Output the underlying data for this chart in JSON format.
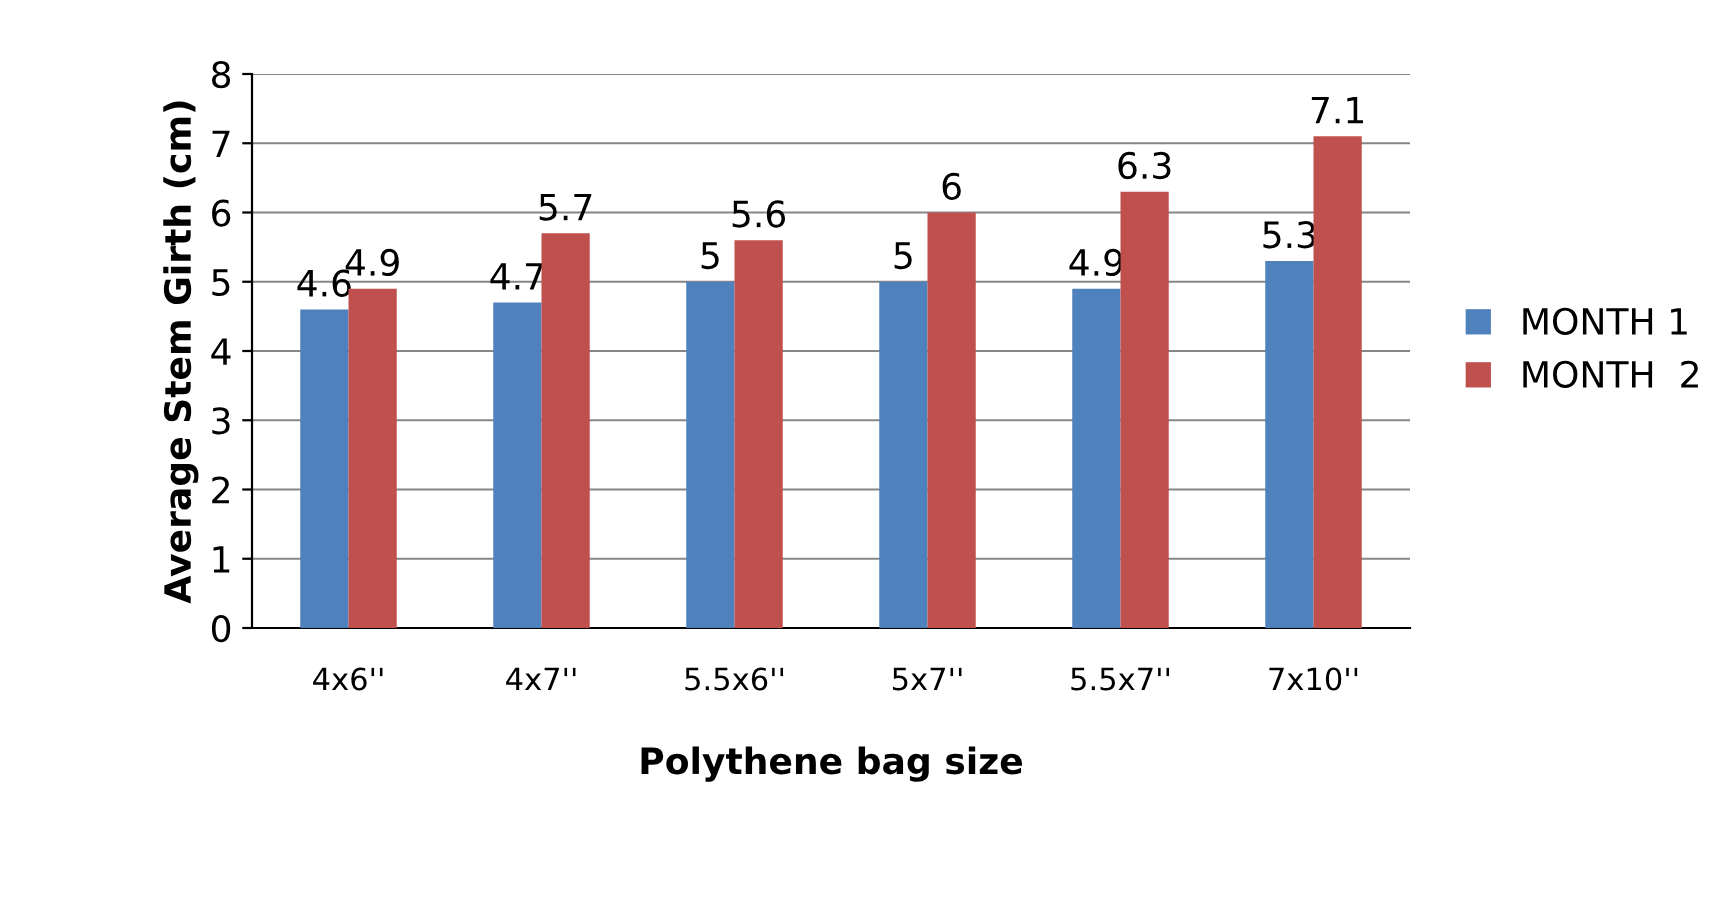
{
  "chart_data": {
    "type": "bar",
    "xlabel": "Polythene bag size",
    "ylabel": "Average Stem Girth (cm)",
    "categories": [
      "4x6''",
      "4x7''",
      "5.5x6''",
      "5x7''",
      "5.5x7''",
      "7x10''"
    ],
    "series": [
      {
        "name": "MONTH 1",
        "color": "#4f81bd",
        "values": [
          4.6,
          4.7,
          5,
          5,
          4.9,
          5.3
        ]
      },
      {
        "name": "MONTH  2",
        "color": "#c0504d",
        "values": [
          4.9,
          5.7,
          5.6,
          6,
          6.3,
          7.1
        ]
      }
    ],
    "ylim": [
      0,
      8
    ],
    "yticks": [
      0,
      1,
      2,
      3,
      4,
      5,
      6,
      7,
      8
    ],
    "grid": "y",
    "legend": "right",
    "data_labels": true
  }
}
